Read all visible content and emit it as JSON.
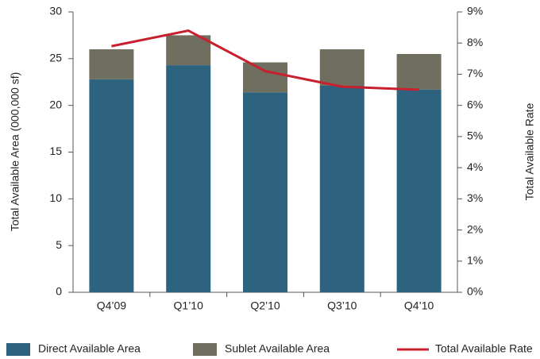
{
  "chart_data": {
    "type": "bar",
    "categories": [
      "Q4’09",
      "Q1’10",
      "Q2’10",
      "Q3’10",
      "Q4’10"
    ],
    "series": [
      {
        "name": "Direct Available Area",
        "color": "#2e6380",
        "values": [
          22.8,
          24.3,
          21.4,
          22.1,
          21.7
        ]
      },
      {
        "name": "Sublet Available Area",
        "color": "#6f6e5f",
        "values": [
          3.2,
          3.2,
          3.2,
          3.9,
          3.8
        ]
      },
      {
        "name": "Total Available Rate",
        "color": "#c8202f",
        "type": "line",
        "axis": "y2",
        "values": [
          7.9,
          8.4,
          7.1,
          6.6,
          6.5
        ]
      }
    ],
    "ylabel": "Total Available Area (000,000 sf)",
    "y2label": "Total Available Rate",
    "ylim": [
      0,
      30
    ],
    "yticks": [
      0,
      5,
      10,
      15,
      20,
      25,
      30
    ],
    "y2lim": [
      0,
      9
    ],
    "y2ticks": [
      {
        "value": 0,
        "label": "0%"
      },
      {
        "value": 1,
        "label": "1%"
      },
      {
        "value": 2,
        "label": "2%"
      },
      {
        "value": 3,
        "label": "3%"
      },
      {
        "value": 4,
        "label": "4%"
      },
      {
        "value": 5,
        "label": "5%"
      },
      {
        "value": 6,
        "label": "6%"
      },
      {
        "value": 7,
        "label": "7%"
      },
      {
        "value": 8,
        "label": "8%"
      },
      {
        "value": 9,
        "label": "9%"
      }
    ],
    "stacked": true,
    "legend": "bottom"
  }
}
